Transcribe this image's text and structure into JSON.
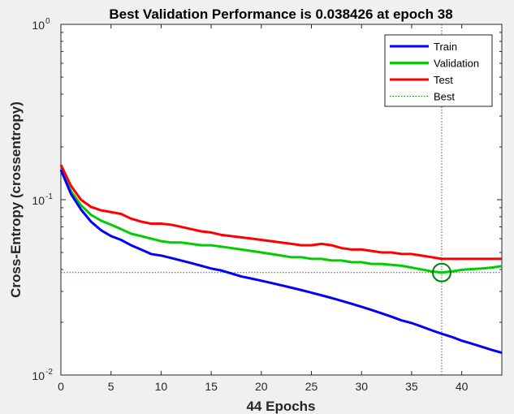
{
  "chart_data": {
    "type": "line",
    "title": "Best Validation Performance is 0.038426 at epoch 38",
    "xlabel": "44 Epochs",
    "ylabel": "Cross-Entropy  (crossentropy)",
    "xscale": "linear",
    "yscale": "log",
    "xlim": [
      0,
      44
    ],
    "ylim": [
      0.01,
      1
    ],
    "xticks": [
      "0",
      "5",
      "10",
      "15",
      "20",
      "25",
      "30",
      "35",
      "40"
    ],
    "yticks": [
      {
        "base": "10",
        "exp": "0"
      },
      {
        "base": "10",
        "exp": "-1"
      },
      {
        "base": "10",
        "exp": "-2"
      }
    ],
    "grid": false,
    "legend_position": "top-right",
    "x": [
      0,
      1,
      2,
      3,
      4,
      5,
      6,
      7,
      8,
      9,
      10,
      11,
      12,
      13,
      14,
      15,
      16,
      17,
      18,
      19,
      20,
      21,
      22,
      23,
      24,
      25,
      26,
      27,
      28,
      29,
      30,
      31,
      32,
      33,
      34,
      35,
      36,
      37,
      38,
      39,
      40,
      41,
      42,
      43,
      44
    ],
    "series": [
      {
        "name": "Train",
        "color": "#0000ff",
        "values": [
          0.148,
          0.108,
          0.088,
          0.075,
          0.067,
          0.062,
          0.059,
          0.055,
          0.052,
          0.049,
          0.048,
          0.0465,
          0.045,
          0.0435,
          0.042,
          0.0405,
          0.0395,
          0.038,
          0.0365,
          0.0355,
          0.0345,
          0.0335,
          0.0325,
          0.0315,
          0.0305,
          0.0295,
          0.0285,
          0.0275,
          0.0265,
          0.0255,
          0.0245,
          0.0235,
          0.0225,
          0.0215,
          0.0205,
          0.0198,
          0.0189,
          0.018,
          0.0172,
          0.0165,
          0.0157,
          0.0151,
          0.0145,
          0.0139,
          0.0134
        ]
      },
      {
        "name": "Validation",
        "color": "#00cc00",
        "values": [
          0.147,
          0.112,
          0.093,
          0.082,
          0.076,
          0.072,
          0.068,
          0.064,
          0.062,
          0.06,
          0.058,
          0.057,
          0.057,
          0.056,
          0.055,
          0.055,
          0.054,
          0.053,
          0.052,
          0.051,
          0.05,
          0.049,
          0.048,
          0.047,
          0.047,
          0.046,
          0.046,
          0.045,
          0.045,
          0.044,
          0.044,
          0.043,
          0.043,
          0.0425,
          0.042,
          0.041,
          0.04,
          0.039,
          0.038426,
          0.039,
          0.0398,
          0.0402,
          0.0405,
          0.041,
          0.0418
        ]
      },
      {
        "name": "Test",
        "color": "#ff0000",
        "values": [
          0.158,
          0.12,
          0.1,
          0.091,
          0.087,
          0.085,
          0.083,
          0.078,
          0.075,
          0.073,
          0.073,
          0.072,
          0.07,
          0.068,
          0.066,
          0.065,
          0.063,
          0.062,
          0.061,
          0.06,
          0.059,
          0.058,
          0.057,
          0.056,
          0.055,
          0.055,
          0.056,
          0.055,
          0.053,
          0.052,
          0.052,
          0.051,
          0.05,
          0.05,
          0.049,
          0.049,
          0.048,
          0.047,
          0.046,
          0.046,
          0.046,
          0.046,
          0.046,
          0.046,
          0.046
        ]
      }
    ],
    "best": {
      "name": "Best",
      "color": "#008000",
      "epoch": 38,
      "value": 0.038426
    }
  }
}
